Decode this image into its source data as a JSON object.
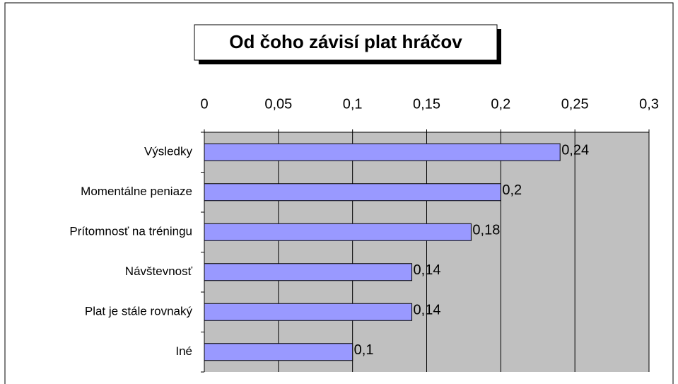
{
  "chart_data": {
    "type": "barh",
    "title": "Od čoho závisí plat hráčov",
    "categories": [
      "Výsledky",
      "Momentálne peniaze",
      "Prítomnosť na tréningu",
      "Návštevnosť",
      "Plat je stále rovnaký",
      "Iné"
    ],
    "values": [
      0.24,
      0.2,
      0.18,
      0.14,
      0.14,
      0.1
    ],
    "value_labels": [
      "0,24",
      "0,2",
      "0,18",
      "0,14",
      "0,14",
      "0,1"
    ],
    "color": "#9999ff",
    "xlim": [
      0,
      0.3
    ],
    "xticks": [
      0,
      {
        "value": 0.05,
        "label": "0,05"
      },
      {
        "value": 0.1,
        "label": "0,1"
      },
      {
        "value": 0.15,
        "label": "0,15"
      },
      {
        "value": 0.2,
        "label": "0,2"
      },
      {
        "value": 0.25,
        "label": "0,25"
      },
      {
        "value": 0.3,
        "label": "0,3"
      }
    ],
    "grid": true
  }
}
